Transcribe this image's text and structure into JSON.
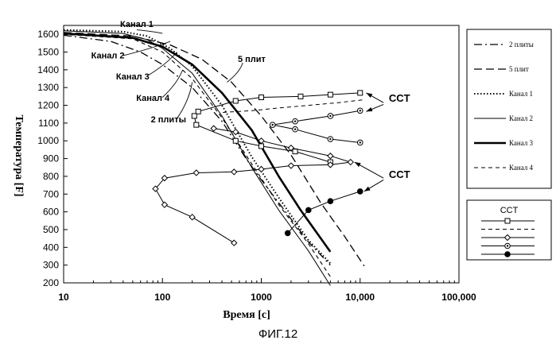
{
  "caption": "ФИГ.12",
  "chart_data": {
    "type": "line",
    "title": "",
    "xlabel": "Время [с]",
    "ylabel": "Температура [F]",
    "xscale": "log",
    "xlim": [
      10,
      100000
    ],
    "ylim": [
      200,
      1650
    ],
    "x_ticks": [
      10,
      100,
      1000,
      10000,
      100000
    ],
    "x_tick_labels": [
      "10",
      "100",
      "1000",
      "10,000",
      "100,000"
    ],
    "y_ticks": [
      200,
      300,
      400,
      500,
      600,
      700,
      800,
      900,
      1000,
      1100,
      1200,
      1300,
      1400,
      1500,
      1600
    ],
    "y_tick_labels": [
      "200",
      "300",
      "400",
      "500",
      "600",
      "700",
      "800",
      "900",
      "1000",
      "1100",
      "1200",
      "1300",
      "1400",
      "1500",
      "1600"
    ],
    "grid": false,
    "legend": {
      "position": "right",
      "entries": [
        {
          "label": "2 плиты",
          "series": "2plates"
        },
        {
          "label": "5 плит",
          "series": "5plates"
        },
        {
          "label": "Канал 1",
          "series": "ch1"
        },
        {
          "label": "Канал 2",
          "series": "ch2"
        },
        {
          "label": "Канал 3",
          "series": "ch3"
        },
        {
          "label": "Канал 4",
          "series": "ch4"
        }
      ],
      "cct_title": "CCT"
    },
    "series": [
      {
        "name": "2 плиты",
        "style": "dashdot",
        "width": 1.3,
        "points": [
          [
            10,
            1595
          ],
          [
            30,
            1560
          ],
          [
            60,
            1500
          ],
          [
            100,
            1430
          ],
          [
            200,
            1300
          ],
          [
            400,
            1110
          ],
          [
            700,
            900
          ],
          [
            1000,
            780
          ],
          [
            2000,
            560
          ],
          [
            3000,
            430
          ],
          [
            5000,
            300
          ]
        ]
      },
      {
        "name": "5 плит",
        "style": "longdash",
        "width": 1.3,
        "points": [
          [
            10,
            1610
          ],
          [
            50,
            1590
          ],
          [
            120,
            1540
          ],
          [
            250,
            1460
          ],
          [
            500,
            1330
          ],
          [
            1000,
            1140
          ],
          [
            2000,
            920
          ],
          [
            4000,
            650
          ],
          [
            7000,
            460
          ],
          [
            11000,
            295
          ]
        ]
      },
      {
        "name": "Канал 1",
        "style": "dotted",
        "width": 2,
        "points": [
          [
            10,
            1625
          ],
          [
            40,
            1615
          ],
          [
            70,
            1590
          ],
          [
            120,
            1520
          ],
          [
            200,
            1420
          ],
          [
            400,
            1200
          ],
          [
            800,
            910
          ],
          [
            1500,
            680
          ],
          [
            3000,
            440
          ],
          [
            5000,
            310
          ]
        ]
      },
      {
        "name": "Канал 2",
        "style": "solid",
        "width": 1,
        "points": [
          [
            10,
            1620
          ],
          [
            40,
            1605
          ],
          [
            70,
            1570
          ],
          [
            100,
            1520
          ],
          [
            200,
            1380
          ],
          [
            400,
            1140
          ],
          [
            800,
            850
          ],
          [
            1500,
            610
          ],
          [
            3000,
            380
          ],
          [
            5000,
            185
          ]
        ]
      },
      {
        "name": "Канал 3",
        "style": "solid",
        "width": 2.6,
        "points": [
          [
            10,
            1605
          ],
          [
            50,
            1580
          ],
          [
            100,
            1530
          ],
          [
            200,
            1430
          ],
          [
            400,
            1270
          ],
          [
            800,
            1060
          ],
          [
            1500,
            800
          ],
          [
            2500,
            610
          ],
          [
            5000,
            375
          ]
        ]
      },
      {
        "name": "Канал 4",
        "style": "shortdash",
        "width": 1.1,
        "points": [
          [
            10,
            1600
          ],
          [
            50,
            1575
          ],
          [
            100,
            1500
          ],
          [
            200,
            1350
          ],
          [
            400,
            1130
          ],
          [
            800,
            870
          ],
          [
            1500,
            640
          ],
          [
            3000,
            420
          ],
          [
            5000,
            235
          ]
        ]
      }
    ],
    "cct_series": [
      {
        "marker": "square",
        "points": [
          [
            10000,
            1270
          ],
          [
            5000,
            1260
          ],
          [
            2500,
            1250
          ],
          [
            1000,
            1245
          ],
          [
            550,
            1225
          ],
          [
            230,
            1165
          ],
          [
            210,
            1140
          ],
          [
            220,
            1090
          ],
          [
            550,
            1000
          ],
          [
            1000,
            970
          ],
          [
            2200,
            940
          ],
          [
            5000,
            880
          ]
        ]
      },
      {
        "marker": "square-dash",
        "points": [
          [
            10500,
            1230
          ],
          [
            6000,
            1215
          ],
          [
            3000,
            1200
          ],
          [
            1500,
            1185
          ],
          [
            800,
            1170
          ],
          [
            400,
            1160
          ]
        ]
      },
      {
        "marker": "diamond",
        "points": [
          [
            530,
            425
          ],
          [
            200,
            570
          ],
          [
            105,
            640
          ],
          [
            85,
            730
          ],
          [
            105,
            790
          ],
          [
            220,
            820
          ],
          [
            530,
            825
          ],
          [
            1000,
            840
          ],
          [
            2000,
            860
          ],
          [
            5000,
            865
          ],
          [
            8000,
            880
          ],
          [
            5000,
            915
          ],
          [
            2000,
            960
          ],
          [
            1000,
            1000
          ],
          [
            550,
            1050
          ],
          [
            330,
            1070
          ]
        ]
      },
      {
        "marker": "circle-dot",
        "points": [
          [
            10000,
            990
          ],
          [
            5000,
            1010
          ],
          [
            2200,
            1065
          ],
          [
            1300,
            1090
          ],
          [
            2200,
            1110
          ],
          [
            5000,
            1140
          ],
          [
            10000,
            1170
          ]
        ]
      },
      {
        "marker": "filled-circle",
        "points": [
          [
            1850,
            480
          ],
          [
            3000,
            610
          ],
          [
            5000,
            660
          ],
          [
            10000,
            715
          ]
        ]
      }
    ],
    "annotations": [
      {
        "text": "Канал 1",
        "x": 55,
        "y": 1640
      },
      {
        "text": "Канал 2",
        "x": 28,
        "y": 1465
      },
      {
        "text": "Канал 3",
        "x": 50,
        "y": 1345
      },
      {
        "text": "Канал 4",
        "x": 80,
        "y": 1225
      },
      {
        "text": "2 плиты",
        "x": 115,
        "y": 1105
      },
      {
        "text": "5 плит",
        "x": 800,
        "y": 1445
      },
      {
        "text": "CCT",
        "x": 25000,
        "y": 1220
      },
      {
        "text": "CCT",
        "x": 25000,
        "y": 790
      }
    ]
  }
}
